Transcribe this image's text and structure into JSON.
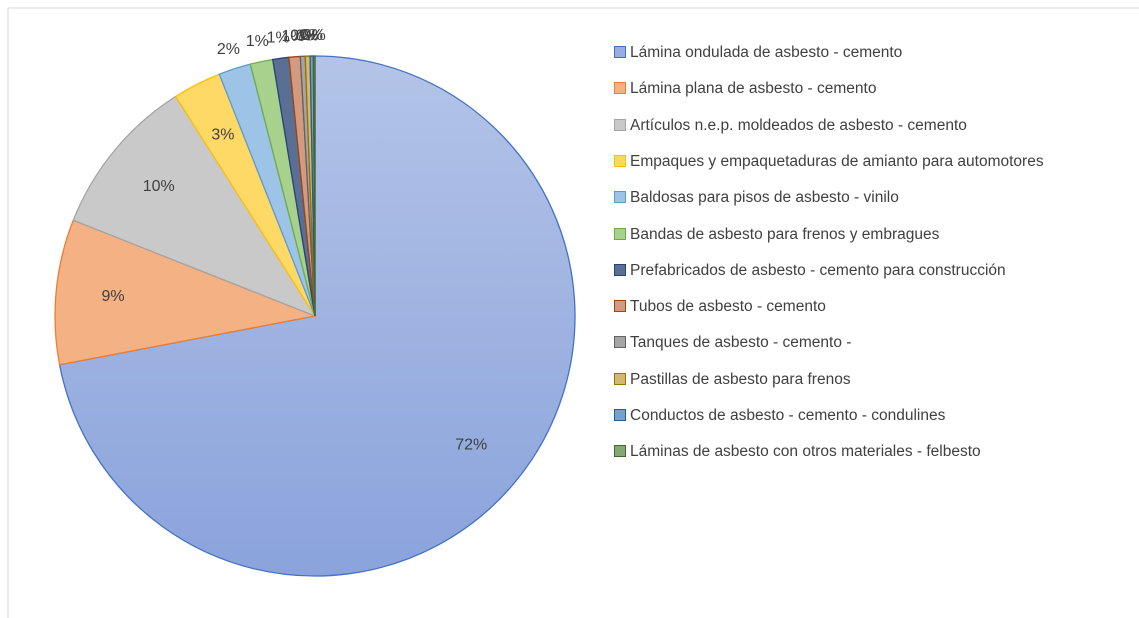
{
  "chart_data": {
    "type": "pie",
    "categories": [
      "Lámina ondulada de asbesto - cemento",
      "Lámina plana de asbesto - cemento",
      "Artículos n.e.p. moldeados de asbesto - cemento",
      "Empaques y empaquetaduras de amianto para automotores",
      "Baldosas para pisos de asbesto - vinilo",
      "Bandas de asbesto para frenos y embragues",
      "Prefabricados de asbesto - cemento para construcción",
      "Tubos de asbesto - cemento",
      "Tanques de asbesto - cemento -",
      "Pastillas de asbesto para frenos",
      "Conductos de asbesto - cemento - condulines",
      "Láminas de asbesto con otros materiales - felbesto"
    ],
    "values": [
      72,
      9,
      10,
      3,
      2,
      1.4,
      1,
      0.7,
      0.3,
      0.3,
      0.2,
      0.1
    ],
    "value_labels": [
      "72%",
      "9%",
      "10%",
      "3%",
      "2%",
      "1%",
      "1%",
      "1%",
      "0%",
      "0%",
      "0%",
      "0%"
    ],
    "colors": [
      "#98aee0",
      "#f4b183",
      "#c9c9c9",
      "#ffd966",
      "#9dc3e6",
      "#a9d18e",
      "#5b6f95",
      "#d39a82",
      "#a5a5a5",
      "#d4b870",
      "#7c9fc7",
      "#84a872"
    ],
    "edge_colors": [
      "#4472c4",
      "#ed7d31",
      "#a5a5a5",
      "#ffc000",
      "#5b9bd5",
      "#70ad47",
      "#264478",
      "#9e480e",
      "#636363",
      "#997300",
      "#255e91",
      "#43682b"
    ],
    "legend": "right"
  }
}
